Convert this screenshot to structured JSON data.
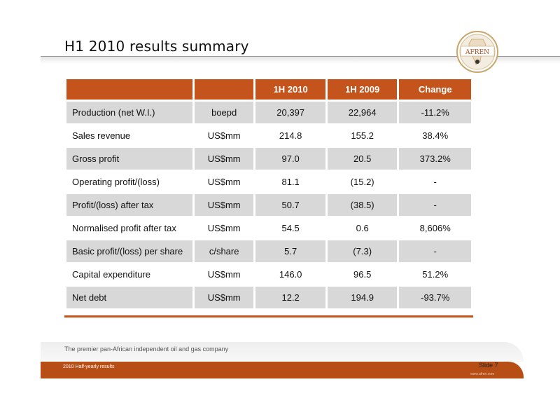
{
  "header": {
    "title": "H1 2010 results summary",
    "logo_text": "AFREN"
  },
  "table": {
    "columns": [
      "",
      "",
      "1H 2010",
      "1H 2009",
      "Change"
    ],
    "rows": [
      {
        "label": "Production (net W.I.)",
        "unit": "boepd",
        "h1_2010": "20,397",
        "h1_2009": "22,964",
        "change": "-11.2%"
      },
      {
        "label": "Sales revenue",
        "unit": "US$mm",
        "h1_2010": "214.8",
        "h1_2009": "155.2",
        "change": "38.4%"
      },
      {
        "label": "Gross profit",
        "unit": "US$mm",
        "h1_2010": "97.0",
        "h1_2009": "20.5",
        "change": "373.2%"
      },
      {
        "label": "Operating profit/(loss)",
        "unit": "US$mm",
        "h1_2010": "81.1",
        "h1_2009": "(15.2)",
        "change": "-"
      },
      {
        "label": "Profit/(loss) after tax",
        "unit": "US$mm",
        "h1_2010": "50.7",
        "h1_2009": "(38.5)",
        "change": "-"
      },
      {
        "label": "Normalised profit after tax",
        "unit": "US$mm",
        "h1_2010": "54.5",
        "h1_2009": "0.6",
        "change": "8,606%"
      },
      {
        "label": "Basic profit/(loss) per share",
        "unit": "c/share",
        "h1_2010": "5.7",
        "h1_2009": "(7.3)",
        "change": "-"
      },
      {
        "label": "Capital expenditure",
        "unit": "US$mm",
        "h1_2010": "146.0",
        "h1_2009": "96.5",
        "change": "51.2%"
      },
      {
        "label": "Net debt",
        "unit": "US$mm",
        "h1_2010": "12.2",
        "h1_2009": "194.9",
        "change": "-93.7%"
      }
    ]
  },
  "footer": {
    "tagline": "The premier pan-African independent oil and gas company",
    "left": "2010 Half-yearly results",
    "slide": "Slide 7",
    "url": "www.afren.com"
  },
  "colors": {
    "accent": "#c4541c",
    "row_grey": "#d8d8d8"
  }
}
